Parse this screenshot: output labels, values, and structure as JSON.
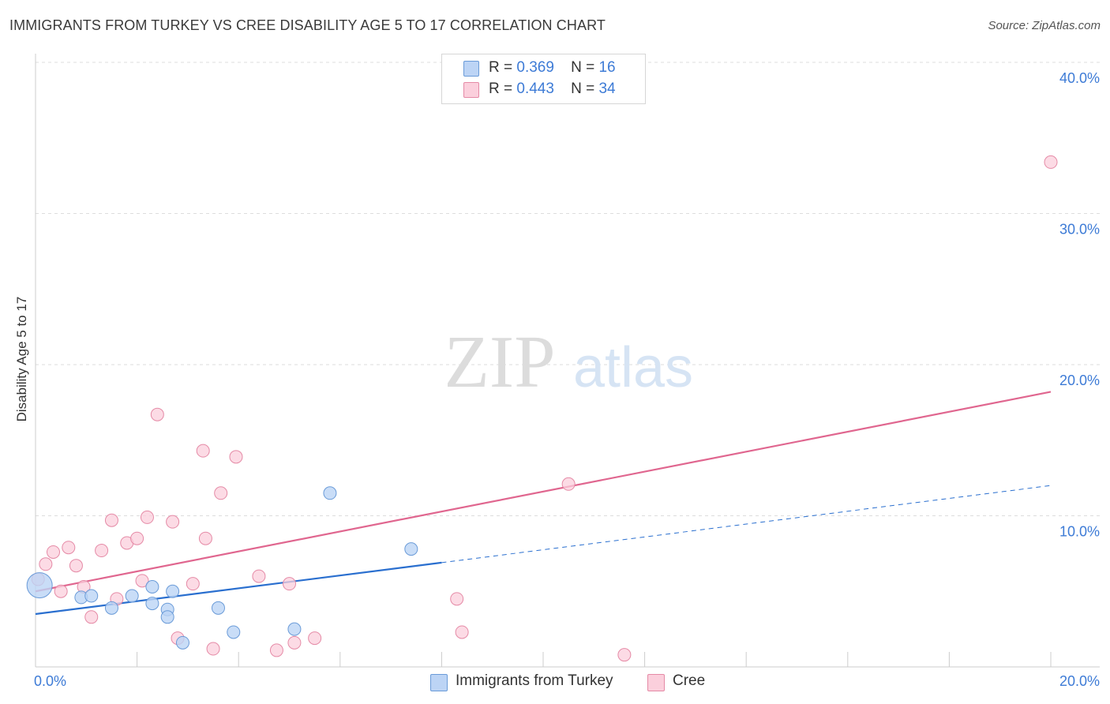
{
  "header": {
    "title": "IMMIGRANTS FROM TURKEY VS CREE DISABILITY AGE 5 TO 17 CORRELATION CHART",
    "source": "Source: ZipAtlas.com"
  },
  "watermark": {
    "zip": "ZIP",
    "atlas": "atlas"
  },
  "legend": {
    "r_label": "R =",
    "n_label": "N =",
    "rows": [
      {
        "r": "0.369",
        "n": "16"
      },
      {
        "r": "0.443",
        "n": "34"
      }
    ]
  },
  "bottom_legend": {
    "series1": "Immigrants from Turkey",
    "series2": "Cree"
  },
  "colors": {
    "blue_fill": "#bcd4f5",
    "blue_stroke": "#6a9bd8",
    "blue_line": "#2a6fcf",
    "pink_fill": "#fbcfdc",
    "pink_stroke": "#e58aa6",
    "pink_line": "#e0668f",
    "tick_label": "#3d7bd6",
    "grid": "#dddddd"
  },
  "chart_data": {
    "type": "scatter",
    "title": "IMMIGRANTS FROM TURKEY VS CREE DISABILITY AGE 5 TO 17 CORRELATION CHART",
    "xlabel": "",
    "ylabel": "Disability Age 5 to 17",
    "xlim": [
      0,
      20
    ],
    "ylim": [
      0,
      40
    ],
    "x_tick_labels": [
      {
        "x": 0,
        "label": "0.0%"
      },
      {
        "x": 20,
        "label": "20.0%"
      }
    ],
    "y_ticks": [
      {
        "y": 10,
        "label": "10.0%"
      },
      {
        "y": 20,
        "label": "20.0%"
      },
      {
        "y": 30,
        "label": "30.0%"
      },
      {
        "y": 40,
        "label": "40.0%"
      }
    ],
    "x_minor_ticks": [
      2,
      4,
      6,
      8,
      10,
      12,
      14,
      16,
      18,
      20
    ],
    "grid": true,
    "legend_position": "top-center",
    "series": [
      {
        "name": "Immigrants from Turkey",
        "r": 0.369,
        "n": 16,
        "points": [
          {
            "x": 0.08,
            "y": 5.4,
            "big": true
          },
          {
            "x": 0.9,
            "y": 4.6
          },
          {
            "x": 1.1,
            "y": 4.7
          },
          {
            "x": 1.5,
            "y": 3.9
          },
          {
            "x": 1.9,
            "y": 4.7
          },
          {
            "x": 2.3,
            "y": 4.2
          },
          {
            "x": 2.7,
            "y": 5.0
          },
          {
            "x": 2.6,
            "y": 3.8
          },
          {
            "x": 2.3,
            "y": 5.3
          },
          {
            "x": 2.6,
            "y": 3.3
          },
          {
            "x": 2.9,
            "y": 1.6
          },
          {
            "x": 3.6,
            "y": 3.9
          },
          {
            "x": 3.9,
            "y": 2.3
          },
          {
            "x": 5.1,
            "y": 2.5
          },
          {
            "x": 5.8,
            "y": 11.5
          },
          {
            "x": 7.4,
            "y": 7.8
          }
        ],
        "trend": {
          "x0": 0,
          "y0": 3.5,
          "x_solid_end": 8,
          "y_solid_end": 6.9,
          "x1": 20,
          "y1": 12.0
        }
      },
      {
        "name": "Cree",
        "r": 0.443,
        "n": 34,
        "points": [
          {
            "x": 0.05,
            "y": 5.8
          },
          {
            "x": 0.2,
            "y": 6.8
          },
          {
            "x": 0.35,
            "y": 7.6
          },
          {
            "x": 0.5,
            "y": 5.0
          },
          {
            "x": 0.65,
            "y": 7.9
          },
          {
            "x": 0.8,
            "y": 6.7
          },
          {
            "x": 0.95,
            "y": 5.3
          },
          {
            "x": 1.1,
            "y": 3.3
          },
          {
            "x": 1.3,
            "y": 7.7
          },
          {
            "x": 1.5,
            "y": 9.7
          },
          {
            "x": 1.6,
            "y": 4.5
          },
          {
            "x": 1.8,
            "y": 8.2
          },
          {
            "x": 2.0,
            "y": 8.5
          },
          {
            "x": 2.1,
            "y": 5.7
          },
          {
            "x": 2.2,
            "y": 9.9
          },
          {
            "x": 2.4,
            "y": 16.7
          },
          {
            "x": 2.7,
            "y": 9.6
          },
          {
            "x": 2.8,
            "y": 1.9
          },
          {
            "x": 3.1,
            "y": 5.5
          },
          {
            "x": 3.3,
            "y": 14.3
          },
          {
            "x": 3.35,
            "y": 8.5
          },
          {
            "x": 3.5,
            "y": 1.2
          },
          {
            "x": 3.65,
            "y": 11.5
          },
          {
            "x": 3.95,
            "y": 13.9
          },
          {
            "x": 4.4,
            "y": 6.0
          },
          {
            "x": 4.75,
            "y": 1.1
          },
          {
            "x": 5.0,
            "y": 5.5
          },
          {
            "x": 5.1,
            "y": 1.6
          },
          {
            "x": 5.5,
            "y": 1.9
          },
          {
            "x": 8.3,
            "y": 4.5
          },
          {
            "x": 8.4,
            "y": 2.3
          },
          {
            "x": 10.5,
            "y": 12.1
          },
          {
            "x": 11.6,
            "y": 0.8
          },
          {
            "x": 20.0,
            "y": 33.4
          }
        ],
        "trend": {
          "x0": 0,
          "y0": 5.0,
          "x1": 20,
          "y1": 18.2
        }
      }
    ]
  }
}
